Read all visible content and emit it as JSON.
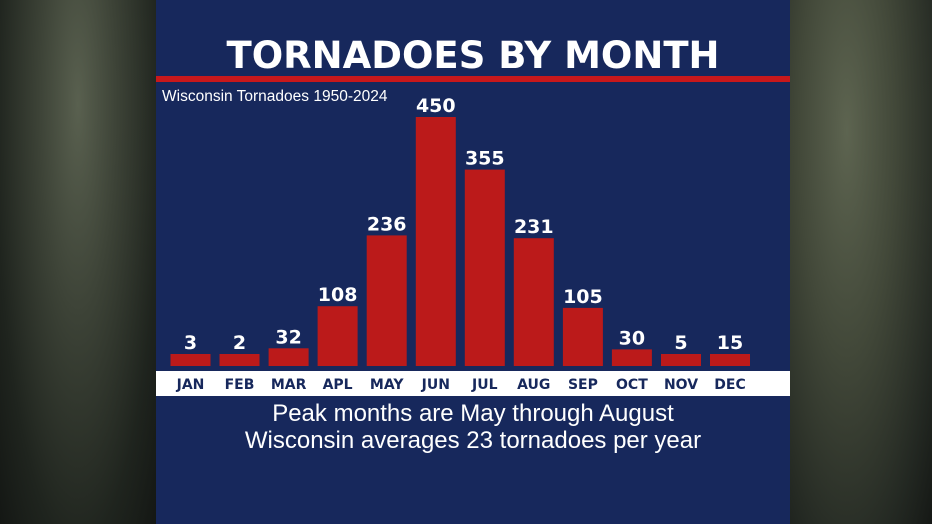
{
  "chart_data": {
    "type": "bar",
    "title": "TORNADOES BY MONTH",
    "subtitle": "Wisconsin Tornadoes 1950-2024",
    "categories": [
      "JAN",
      "FEB",
      "MAR",
      "APL",
      "MAY",
      "JUN",
      "JUL",
      "AUG",
      "SEP",
      "OCT",
      "NOV",
      "DEC"
    ],
    "values": [
      3,
      2,
      32,
      108,
      236,
      450,
      355,
      231,
      105,
      30,
      5,
      15
    ],
    "data_labels": [
      "3",
      "2",
      "32",
      "108",
      "236",
      "450",
      "355",
      "231",
      "105",
      "30",
      "5",
      "15"
    ],
    "ylim": [
      0,
      450
    ],
    "grid": false,
    "legend": "none",
    "bar_color": "#bb1a1a"
  },
  "notes": {
    "line1": "Peak months are May through August",
    "line2": "Wisconsin averages 23 tornadoes per year"
  },
  "colors": {
    "panel": "#17285c",
    "accent_red": "#c8181b",
    "axis_band": "#ffffff",
    "tick_text": "#17285c"
  }
}
